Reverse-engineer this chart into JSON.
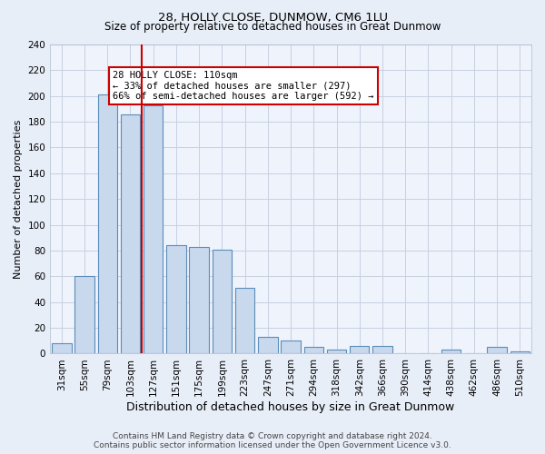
{
  "title": "28, HOLLY CLOSE, DUNMOW, CM6 1LU",
  "subtitle": "Size of property relative to detached houses in Great Dunmow",
  "xlabel": "Distribution of detached houses by size in Great Dunmow",
  "ylabel": "Number of detached properties",
  "bar_labels": [
    "31sqm",
    "55sqm",
    "79sqm",
    "103sqm",
    "127sqm",
    "151sqm",
    "175sqm",
    "199sqm",
    "223sqm",
    "247sqm",
    "271sqm",
    "294sqm",
    "318sqm",
    "342sqm",
    "366sqm",
    "390sqm",
    "414sqm",
    "438sqm",
    "462sqm",
    "486sqm",
    "510sqm"
  ],
  "bar_values": [
    8,
    60,
    201,
    186,
    193,
    84,
    83,
    81,
    51,
    13,
    10,
    5,
    3,
    6,
    6,
    0,
    0,
    3,
    0,
    5,
    2
  ],
  "bar_color": "#c8d8ed",
  "bar_edge_color": "#5b8db8",
  "vline_x": 3.5,
  "vline_color": "#cc0000",
  "annotation_text": "28 HOLLY CLOSE: 110sqm\n← 33% of detached houses are smaller (297)\n66% of semi-detached houses are larger (592) →",
  "annotation_box_color": "#ffffff",
  "annotation_box_edge": "#cc0000",
  "ylim": [
    0,
    240
  ],
  "yticks": [
    0,
    20,
    40,
    60,
    80,
    100,
    120,
    140,
    160,
    180,
    200,
    220,
    240
  ],
  "footer1": "Contains HM Land Registry data © Crown copyright and database right 2024.",
  "footer2": "Contains public sector information licensed under the Open Government Licence v3.0.",
  "bg_color": "#e8eef8",
  "plot_bg_color": "#eef3fc",
  "grid_color": "#c8d0e0",
  "title_fontsize": 9.5,
  "subtitle_fontsize": 8.5,
  "xlabel_fontsize": 9,
  "ylabel_fontsize": 8,
  "tick_fontsize": 7.5,
  "footer_fontsize": 6.5
}
